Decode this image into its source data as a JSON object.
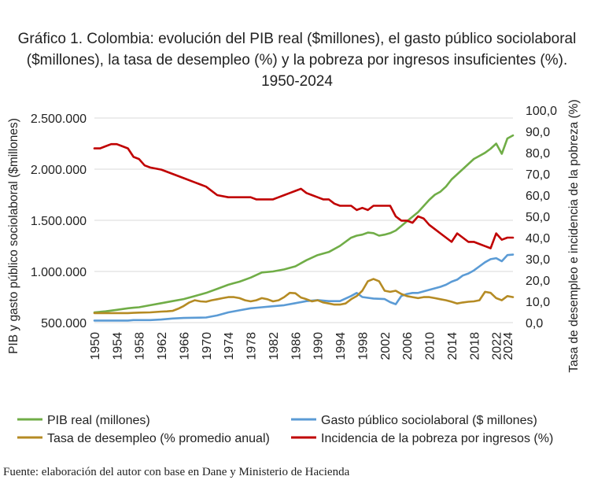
{
  "chart_data": {
    "type": "line",
    "title": "Gráfico 1. Colombia: evolución del PIB real ($millones), el gasto público sociolaboral ($millones), la tasa de desempleo (%) y la pobreza por ingresos insuficientes (%). 1950-2024",
    "ylabel_left": "PIB y gasto público sociolaboral ($millones)",
    "ylabel_right": "Tasa de desempleo e incidencia de la pobreza (%)",
    "xlabel": "",
    "ylim_left": [
      500000,
      2500000
    ],
    "ylim_right": [
      0,
      100
    ],
    "xlim": [
      1950,
      2025
    ],
    "x_ticks": [
      "1950",
      "1954",
      "1958",
      "1962",
      "1966",
      "1970",
      "1974",
      "1978",
      "1982",
      "1986",
      "1990",
      "1994",
      "1998",
      "2002",
      "2006",
      "2010",
      "2014",
      "2018",
      "2022",
      "2024"
    ],
    "y_ticks_left": [
      "500.000",
      "1.000.000",
      "1.500.000",
      "2.000.000",
      "2.500.000"
    ],
    "y_ticks_right": [
      "0,0",
      "10,0",
      "20,0",
      "30,0",
      "40,0",
      "50,0",
      "60,0",
      "70,0",
      "80,0",
      "90,0",
      "100,0"
    ],
    "grid": "horizontal",
    "legend_position": "bottom",
    "series": [
      {
        "name": "PIB real (millones)",
        "axis": "left",
        "color": "#70ad47",
        "x": [
          1950,
          1952,
          1954,
          1956,
          1957,
          1958,
          1960,
          1962,
          1964,
          1966,
          1968,
          1970,
          1972,
          1974,
          1975,
          1976,
          1978,
          1980,
          1982,
          1984,
          1986,
          1988,
          1990,
          1992,
          1994,
          1996,
          1997,
          1998,
          1999,
          2000,
          2001,
          2002,
          2003,
          2004,
          2006,
          2008,
          2010,
          2011,
          2012,
          2013,
          2014,
          2016,
          2018,
          2019,
          2020,
          2021,
          2022,
          2023,
          2024,
          2025
        ],
        "values": [
          600000,
          610000,
          625000,
          640000,
          645000,
          650000,
          670000,
          690000,
          710000,
          730000,
          760000,
          790000,
          830000,
          870000,
          885000,
          900000,
          940000,
          990000,
          1000000,
          1020000,
          1050000,
          1110000,
          1160000,
          1190000,
          1250000,
          1330000,
          1350000,
          1360000,
          1380000,
          1375000,
          1350000,
          1360000,
          1375000,
          1400000,
          1490000,
          1580000,
          1700000,
          1750000,
          1780000,
          1830000,
          1900000,
          2000000,
          2100000,
          2130000,
          2160000,
          2200000,
          2250000,
          2150000,
          2300000,
          2330000
        ]
      },
      {
        "name": "Gasto público sociolaboral ($ millones)",
        "axis": "left",
        "color": "#5b9bd5",
        "x": [
          1950,
          1952,
          1954,
          1956,
          1957,
          1958,
          1960,
          1962,
          1964,
          1966,
          1968,
          1970,
          1972,
          1974,
          1976,
          1978,
          1980,
          1982,
          1984,
          1986,
          1988,
          1990,
          1992,
          1994,
          1996,
          1997,
          1998,
          2000,
          2002,
          2003,
          2004,
          2005,
          2006,
          2007,
          2008,
          2010,
          2012,
          2013,
          2014,
          2015,
          2016,
          2017,
          2018,
          2019,
          2020,
          2021,
          2022,
          2023,
          2024,
          2025
        ],
        "values": [
          520000,
          520000,
          520000,
          520000,
          525000,
          525000,
          525000,
          530000,
          540000,
          545000,
          548000,
          550000,
          570000,
          600000,
          620000,
          640000,
          650000,
          660000,
          670000,
          690000,
          710000,
          720000,
          710000,
          710000,
          760000,
          790000,
          750000,
          735000,
          730000,
          700000,
          680000,
          760000,
          780000,
          790000,
          790000,
          820000,
          850000,
          870000,
          900000,
          920000,
          960000,
          980000,
          1010000,
          1050000,
          1090000,
          1120000,
          1130000,
          1100000,
          1160000,
          1165000
        ]
      },
      {
        "name": "Tasa de desempleo (% promedio anual)",
        "axis": "right",
        "color": "#b58b24",
        "x": [
          1950,
          1952,
          1954,
          1956,
          1957,
          1958,
          1960,
          1961,
          1962,
          1963,
          1964,
          1965,
          1966,
          1967,
          1968,
          1969,
          1970,
          1971,
          1972,
          1973,
          1974,
          1975,
          1976,
          1977,
          1978,
          1979,
          1980,
          1981,
          1982,
          1983,
          1984,
          1985,
          1986,
          1987,
          1988,
          1989,
          1990,
          1991,
          1992,
          1993,
          1994,
          1995,
          1996,
          1997,
          1998,
          1999,
          2000,
          2001,
          2002,
          2003,
          2004,
          2005,
          2006,
          2007,
          2008,
          2009,
          2010,
          2011,
          2012,
          2013,
          2014,
          2015,
          2016,
          2017,
          2018,
          2019,
          2020,
          2021,
          2022,
          2023,
          2024,
          2025
        ],
        "values": [
          4.5,
          4.5,
          4.5,
          4.5,
          4.6,
          4.7,
          4.8,
          5.0,
          5.2,
          5.3,
          5.5,
          6.5,
          7.8,
          9.5,
          10.5,
          10.0,
          9.8,
          10.5,
          11.0,
          11.5,
          12.0,
          12.0,
          11.5,
          10.5,
          10.0,
          10.5,
          11.5,
          11.0,
          10.0,
          10.5,
          12.0,
          14.0,
          13.8,
          11.8,
          11.0,
          10.0,
          10.5,
          9.5,
          9.0,
          8.5,
          8.5,
          9.0,
          11.0,
          12.5,
          15.0,
          19.5,
          20.5,
          19.5,
          15.0,
          14.5,
          15.0,
          13.5,
          12.5,
          12.0,
          11.5,
          12.0,
          12.0,
          11.5,
          11.0,
          10.5,
          9.8,
          9.0,
          9.5,
          9.8,
          10.0,
          10.5,
          14.5,
          14.0,
          11.5,
          10.5,
          12.5,
          12.0
        ]
      },
      {
        "name": "Incidencia de la pobreza por ingresos (%)",
        "axis": "right",
        "color": "#c00000",
        "x": [
          1950,
          1951,
          1952,
          1953,
          1954,
          1955,
          1956,
          1957,
          1958,
          1959,
          1960,
          1962,
          1964,
          1966,
          1968,
          1970,
          1972,
          1974,
          1976,
          1977,
          1978,
          1979,
          1980,
          1981,
          1982,
          1983,
          1984,
          1985,
          1986,
          1987,
          1988,
          1989,
          1990,
          1991,
          1992,
          1993,
          1994,
          1995,
          1996,
          1997,
          1998,
          1999,
          2000,
          2001,
          2002,
          2003,
          2004,
          2005,
          2006,
          2007,
          2008,
          2009,
          2010,
          2011,
          2012,
          2013,
          2014,
          2015,
          2016,
          2017,
          2018,
          2019,
          2020,
          2021,
          2022,
          2023,
          2024,
          2025
        ],
        "values": [
          82,
          82,
          83,
          84,
          84,
          83,
          82,
          78,
          77,
          74,
          73,
          72,
          70,
          68,
          66,
          64,
          60,
          59,
          59,
          59,
          59,
          58,
          58,
          58,
          58,
          59,
          60,
          61,
          62,
          63,
          61,
          60,
          59,
          58,
          58,
          56,
          55,
          55,
          55,
          53,
          54,
          53,
          55,
          55,
          55,
          55,
          50,
          48,
          48,
          47,
          50,
          49,
          46,
          44,
          42,
          40,
          38,
          42,
          40,
          38,
          38,
          37,
          36,
          35,
          42,
          39,
          40,
          40
        ]
      }
    ]
  },
  "source_note": "Fuente: elaboración del autor con base en Dane y Ministerio de Hacienda"
}
